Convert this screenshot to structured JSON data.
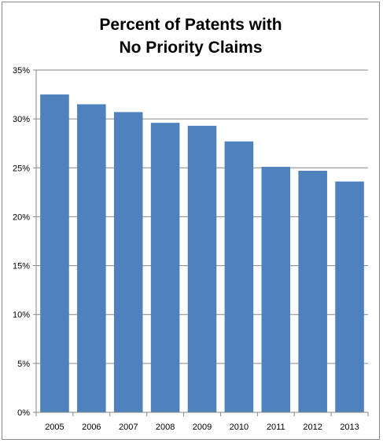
{
  "chart_data": {
    "type": "bar",
    "title_lines": [
      "Percent of Patents with",
      "No Priority Claims"
    ],
    "categories": [
      "2005",
      "2006",
      "2007",
      "2008",
      "2009",
      "2010",
      "2011",
      "2012",
      "2013"
    ],
    "values": [
      32.5,
      31.5,
      30.7,
      29.6,
      29.3,
      27.7,
      25.1,
      24.7,
      23.6
    ],
    "ylim": [
      0,
      35
    ],
    "yticks": [
      0,
      5,
      10,
      15,
      20,
      25,
      30,
      35
    ],
    "ytick_labels": [
      "0%",
      "5%",
      "10%",
      "15%",
      "20%",
      "25%",
      "30%",
      "35%"
    ],
    "xlabel": "",
    "ylabel": "",
    "grid": true,
    "legend": "none",
    "colors": {
      "bar": "#4f81bd",
      "gridline": "#868686",
      "axis": "#868686"
    }
  }
}
